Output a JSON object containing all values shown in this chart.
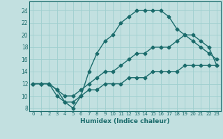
{
  "xlabel": "Humidex (Indice chaleur)",
  "xlim": [
    -0.5,
    23.5
  ],
  "ylim": [
    7.5,
    25.5
  ],
  "xticks": [
    0,
    1,
    2,
    3,
    4,
    5,
    6,
    7,
    8,
    9,
    10,
    11,
    12,
    13,
    14,
    15,
    16,
    17,
    18,
    19,
    20,
    21,
    22,
    23
  ],
  "yticks": [
    8,
    10,
    12,
    14,
    16,
    18,
    20,
    22,
    24
  ],
  "background_color": "#c2e0e0",
  "grid_color": "#9fcfcf",
  "line_color": "#1a6b6b",
  "line1_x": [
    0,
    1,
    2,
    3,
    4,
    5,
    6,
    7,
    8,
    9,
    10,
    11,
    12,
    13,
    14,
    15,
    16,
    17,
    18,
    19,
    20,
    21,
    22,
    23
  ],
  "line1_y": [
    12,
    12,
    12,
    11,
    9,
    8,
    10,
    14,
    17,
    19,
    20,
    22,
    23,
    24,
    24,
    24,
    24,
    23,
    21,
    20,
    19,
    18,
    17,
    16
  ],
  "line2_x": [
    0,
    1,
    2,
    3,
    4,
    5,
    6,
    7,
    8,
    9,
    10,
    11,
    12,
    13,
    14,
    15,
    16,
    17,
    18,
    19,
    20,
    21,
    22,
    23
  ],
  "line2_y": [
    12,
    12,
    12,
    11,
    10,
    10,
    11,
    12,
    13,
    14,
    14,
    15,
    16,
    17,
    17,
    18,
    18,
    18,
    19,
    20,
    20,
    19,
    18,
    15
  ],
  "line3_x": [
    0,
    1,
    2,
    3,
    4,
    5,
    6,
    7,
    8,
    9,
    10,
    11,
    12,
    13,
    14,
    15,
    16,
    17,
    18,
    19,
    20,
    21,
    22,
    23
  ],
  "line3_y": [
    12,
    12,
    12,
    10,
    9,
    9,
    10,
    11,
    11,
    12,
    12,
    12,
    13,
    13,
    13,
    14,
    14,
    14,
    14,
    15,
    15,
    15,
    15,
    15
  ],
  "marker_size": 2.5,
  "line_width": 1.0
}
